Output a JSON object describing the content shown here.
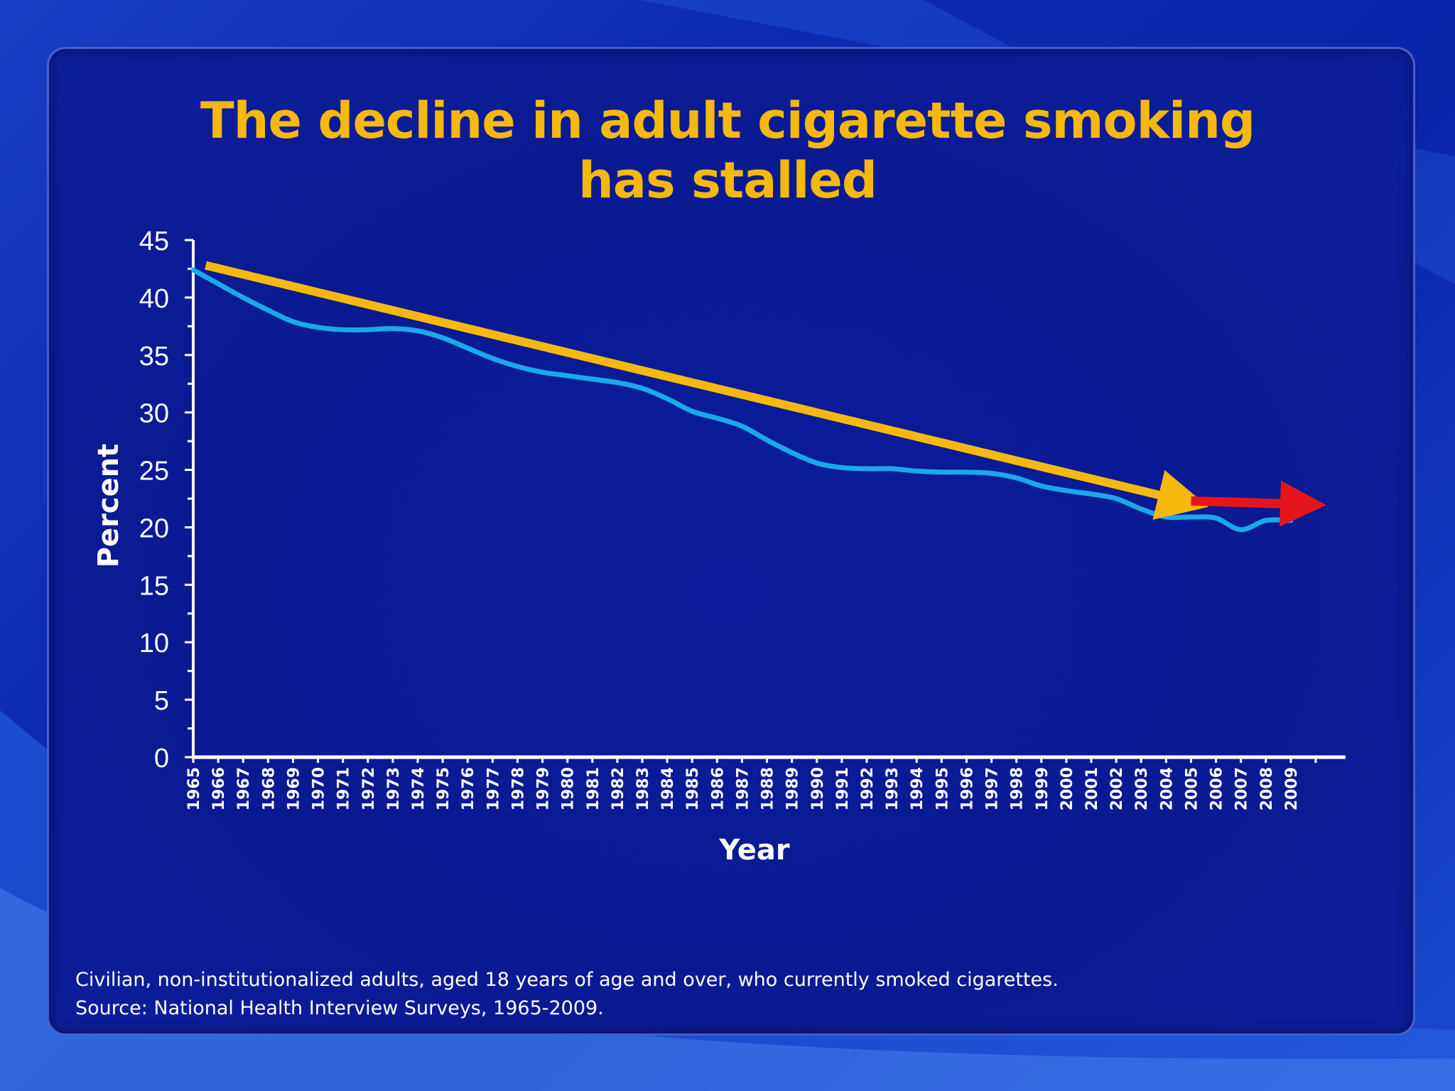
{
  "slide": {
    "title_line1": "The decline in adult cigarette smoking",
    "title_line2": "has stalled",
    "footnote_line1": "Civilian, non-institutionalized adults, aged 18 years of age and over, who currently smoked cigarettes.",
    "footnote_line2": "Source: National Health Interview Surveys, 1965-2009."
  },
  "colors": {
    "background": "#0a1a92",
    "title": "#f7b80e",
    "series_line": "#1aa8ea",
    "trend_arrow": "#f7b80e",
    "stall_arrow": "#e8141c",
    "axis": "#ffffff"
  },
  "chart_data": {
    "type": "line",
    "title": "The decline in adult cigarette smoking has stalled",
    "xlabel": "Year",
    "ylabel": "Percent",
    "ylim": [
      0,
      45
    ],
    "yticks": [
      0,
      5,
      10,
      15,
      20,
      25,
      30,
      35,
      40,
      45
    ],
    "grid": false,
    "x": [
      1965,
      1966,
      1967,
      1968,
      1969,
      1970,
      1971,
      1972,
      1973,
      1974,
      1975,
      1976,
      1977,
      1978,
      1979,
      1980,
      1981,
      1982,
      1983,
      1984,
      1985,
      1986,
      1987,
      1988,
      1989,
      1990,
      1991,
      1992,
      1993,
      1994,
      1995,
      1996,
      1997,
      1998,
      1999,
      2000,
      2001,
      2002,
      2003,
      2004,
      2005,
      2006,
      2007,
      2008,
      2009
    ],
    "series": [
      {
        "values": [
          42.4,
          41.2,
          40.0,
          38.9,
          37.9,
          37.4,
          37.2,
          37.2,
          37.3,
          37.1,
          36.5,
          35.6,
          34.7,
          34.0,
          33.5,
          33.2,
          32.9,
          32.6,
          32.1,
          31.2,
          30.1,
          29.5,
          28.8,
          27.6,
          26.5,
          25.6,
          25.2,
          25.1,
          25.1,
          24.9,
          24.8,
          24.8,
          24.7,
          24.3,
          23.6,
          23.2,
          22.9,
          22.5,
          21.6,
          20.9,
          20.9,
          20.8,
          19.8,
          20.6,
          20.6
        ]
      }
    ],
    "annotations": [
      {
        "type": "arrow",
        "role": "trend",
        "x_start": 1965.5,
        "y_start": 42.8,
        "x_end": 2004.7,
        "y_end": 22.3
      },
      {
        "type": "arrow",
        "role": "stall",
        "x_start": 2005.0,
        "y_start": 22.3,
        "x_end": 2009.5,
        "y_end": 22.0
      }
    ]
  }
}
